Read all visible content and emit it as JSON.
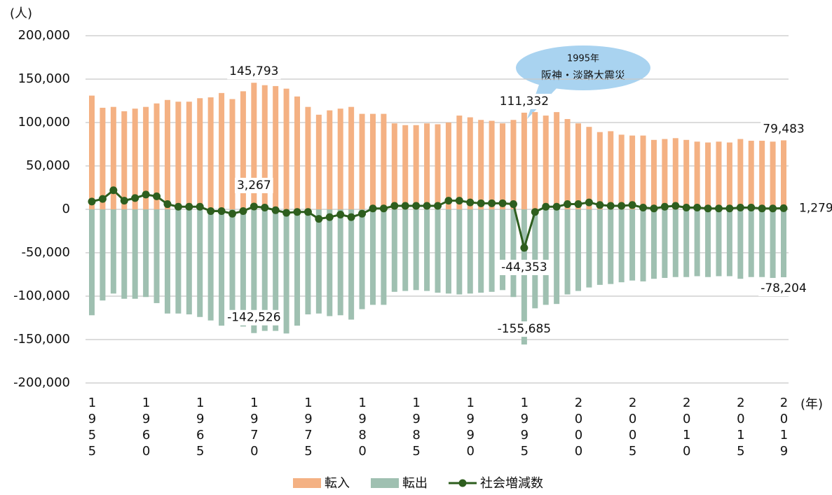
{
  "chart_data": {
    "type": "bar",
    "y_unit": "(人)",
    "x_unit": "(年)",
    "annotation": [
      "1995年",
      "阪神・淡路大震災"
    ],
    "categories": [
      "1955",
      null,
      null,
      null,
      null,
      "1960",
      null,
      null,
      null,
      null,
      "1965",
      null,
      null,
      null,
      null,
      "1970",
      null,
      null,
      null,
      null,
      "1975",
      null,
      null,
      null,
      null,
      "1980",
      null,
      null,
      null,
      null,
      "1985",
      null,
      null,
      null,
      null,
      "1990",
      null,
      null,
      null,
      null,
      "1995",
      null,
      null,
      null,
      null,
      "2000",
      null,
      null,
      null,
      null,
      "2005",
      null,
      null,
      null,
      null,
      "2010",
      null,
      null,
      null,
      null,
      "2015",
      null,
      null,
      null,
      "2019"
    ],
    "series": [
      {
        "name": "転入",
        "type": "bar",
        "color": "#F4B183",
        "values": [
          131000,
          117000,
          118000,
          113000,
          116000,
          118000,
          122000,
          126000,
          124000,
          124000,
          128000,
          129000,
          134000,
          127000,
          136000,
          145793,
          143000,
          142000,
          139000,
          130000,
          118000,
          109000,
          114000,
          116000,
          118000,
          110000,
          110000,
          110000,
          99000,
          97000,
          97000,
          99000,
          98000,
          100000,
          108000,
          106000,
          103000,
          102000,
          99000,
          103000,
          111332,
          112000,
          108000,
          112000,
          104000,
          99000,
          95000,
          89000,
          90000,
          86000,
          85000,
          85000,
          80000,
          81000,
          82000,
          80000,
          78000,
          77000,
          78000,
          77000,
          81000,
          79000,
          79000,
          78000,
          79483
        ],
        "value_labels": [
          null,
          null,
          null,
          null,
          null,
          null,
          null,
          null,
          null,
          null,
          null,
          null,
          null,
          null,
          null,
          "145,793",
          null,
          null,
          null,
          null,
          null,
          null,
          null,
          null,
          null,
          null,
          null,
          null,
          null,
          null,
          null,
          null,
          null,
          null,
          null,
          null,
          null,
          null,
          null,
          null,
          "111,332",
          null,
          null,
          null,
          null,
          null,
          null,
          null,
          null,
          null,
          null,
          null,
          null,
          null,
          null,
          null,
          null,
          null,
          null,
          null,
          null,
          null,
          null,
          null,
          "79,483"
        ]
      },
      {
        "name": "転出",
        "type": "bar",
        "color": "#9FC0B1",
        "values": [
          -122000,
          -105000,
          -97000,
          -103000,
          -103000,
          -101000,
          -108000,
          -120000,
          -120000,
          -121000,
          -124000,
          -128000,
          -134000,
          -132000,
          -135000,
          -142526,
          -140000,
          -140000,
          -143000,
          -134000,
          -121000,
          -120000,
          -123000,
          -122000,
          -127000,
          -115000,
          -110000,
          -110000,
          -95000,
          -94000,
          -93000,
          -94000,
          -96000,
          -97000,
          -98000,
          -97000,
          -96000,
          -95000,
          -93000,
          -101000,
          -155685,
          -114000,
          -110000,
          -109000,
          -98000,
          -94000,
          -90000,
          -87000,
          -86000,
          -84000,
          -82000,
          -83000,
          -80000,
          -79000,
          -78000,
          -78000,
          -77000,
          -78000,
          -77000,
          -77000,
          -80000,
          -78000,
          -78000,
          -79000,
          -78204
        ],
        "value_labels": [
          null,
          null,
          null,
          null,
          null,
          null,
          null,
          null,
          null,
          null,
          null,
          null,
          null,
          null,
          null,
          "-142,526",
          null,
          null,
          null,
          null,
          null,
          null,
          null,
          null,
          null,
          null,
          null,
          null,
          null,
          null,
          null,
          null,
          null,
          null,
          null,
          null,
          null,
          null,
          null,
          null,
          "-155,685",
          null,
          null,
          null,
          null,
          null,
          null,
          null,
          null,
          null,
          null,
          null,
          null,
          null,
          null,
          null,
          null,
          null,
          null,
          null,
          null,
          null,
          null,
          null,
          "-78,204"
        ]
      },
      {
        "name": "社会増減数",
        "type": "line",
        "color": "#2E5E1E",
        "values": [
          9000,
          12000,
          22000,
          10000,
          13000,
          17000,
          15000,
          6000,
          3000,
          3000,
          3000,
          -2000,
          -2000,
          -5000,
          -2000,
          3267,
          2000,
          -1000,
          -4000,
          -3000,
          -3000,
          -11000,
          -9000,
          -6000,
          -9000,
          -5000,
          1000,
          1000,
          4000,
          4000,
          4000,
          4000,
          4000,
          10000,
          10000,
          8000,
          7000,
          7000,
          7000,
          6000,
          -44353,
          -3000,
          3000,
          3000,
          6000,
          6000,
          8000,
          5000,
          4000,
          4000,
          5000,
          2000,
          1000,
          3000,
          4000,
          2000,
          2000,
          1000,
          1000,
          1000,
          2000,
          2000,
          1000,
          1000,
          1279
        ],
        "value_labels": [
          null,
          null,
          null,
          null,
          null,
          null,
          null,
          null,
          null,
          null,
          null,
          null,
          null,
          null,
          null,
          "3,267",
          null,
          null,
          null,
          null,
          null,
          null,
          null,
          null,
          null,
          null,
          null,
          null,
          null,
          null,
          null,
          null,
          null,
          null,
          null,
          null,
          null,
          null,
          null,
          null,
          "-44,353",
          null,
          null,
          null,
          null,
          null,
          null,
          null,
          null,
          null,
          null,
          null,
          null,
          null,
          null,
          null,
          null,
          null,
          null,
          null,
          null,
          null,
          null,
          null,
          "1,279"
        ]
      }
    ],
    "ylim": [
      -200000,
      200000
    ],
    "yticks": [
      {
        "value": -200000,
        "label": "-200,000"
      },
      {
        "value": -150000,
        "label": "-150,000"
      },
      {
        "value": -100000,
        "label": "-100,000"
      },
      {
        "value": -50000,
        "label": "-50,000"
      },
      0,
      {
        "value": 50000,
        "label": "50,000"
      },
      {
        "value": 100000,
        "label": "100,000"
      },
      {
        "value": 150000,
        "label": "150,000"
      },
      {
        "value": 200000,
        "label": "200,000"
      }
    ],
    "grid": true,
    "legend": "bottom"
  }
}
